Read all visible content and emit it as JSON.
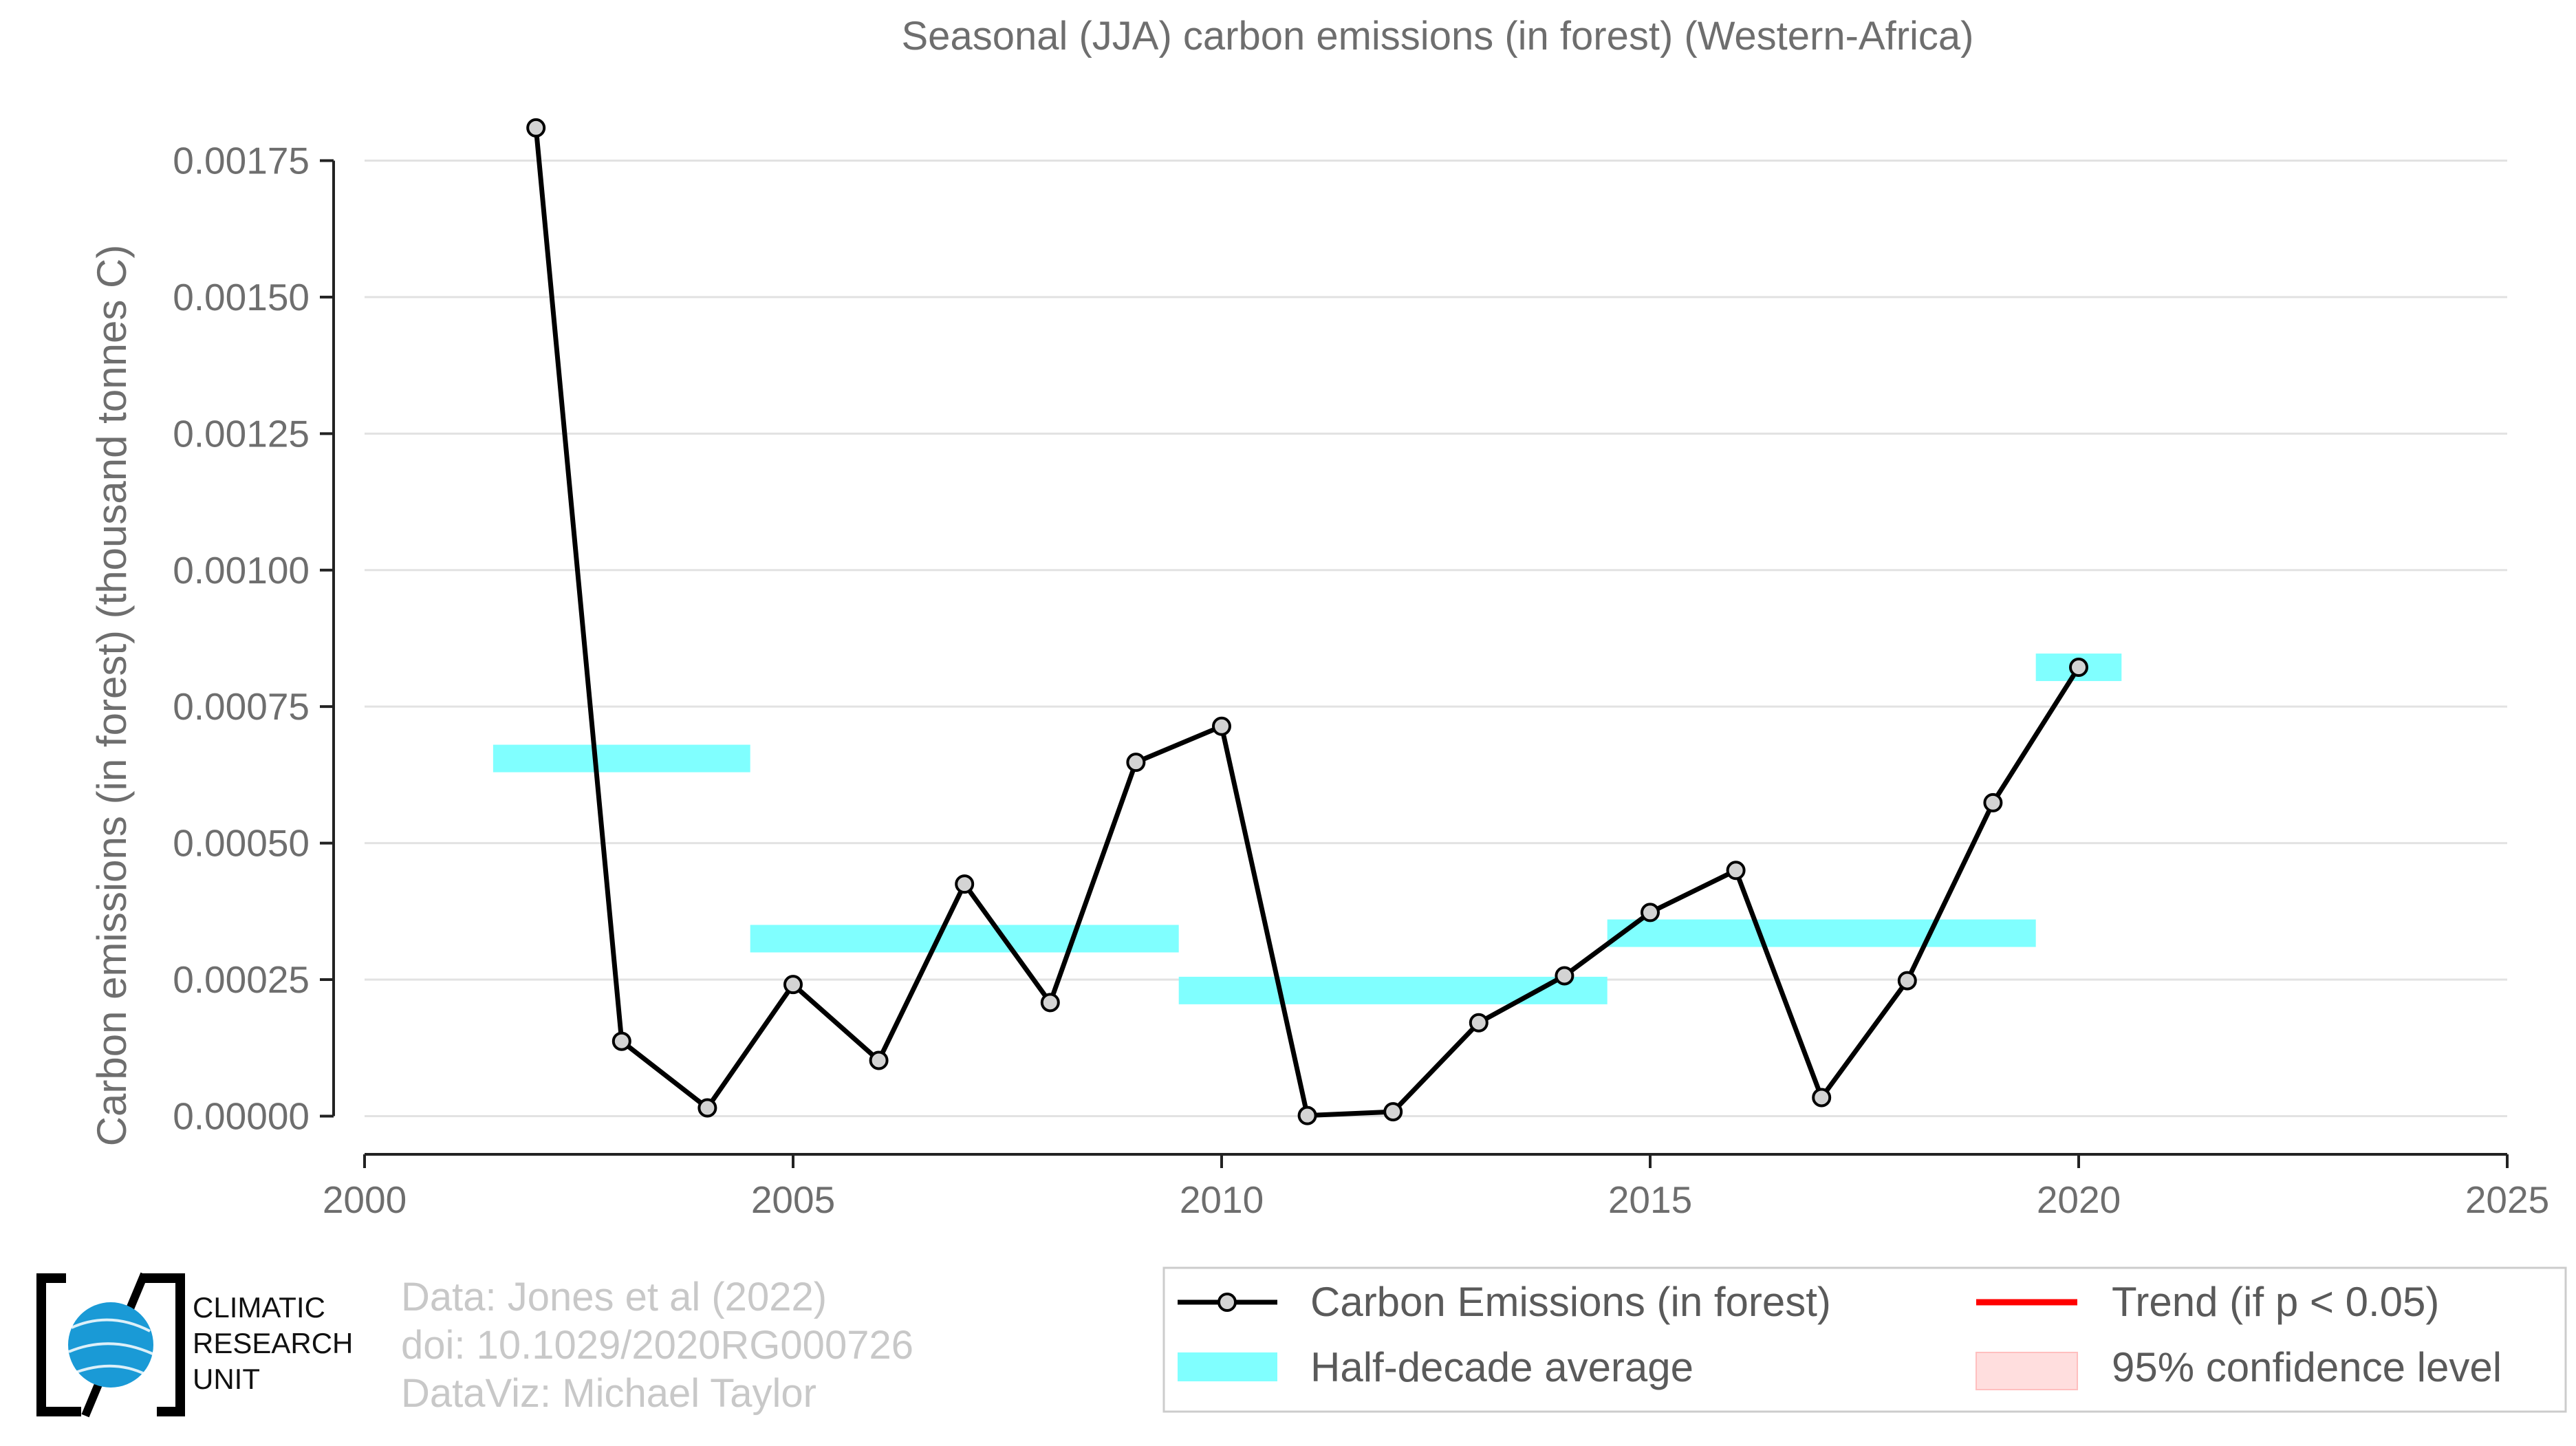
{
  "chart_data": {
    "type": "line",
    "title": "Seasonal (JJA) carbon emissions (in forest) (Western-Africa)",
    "xlabel": "",
    "ylabel": "Carbon emissions (in forest) (thousand tonnes C)",
    "xlim": [
      2000,
      2025
    ],
    "ylim": [
      -7e-05,
      0.00183
    ],
    "x_ticks": [
      2000,
      2005,
      2010,
      2015,
      2020,
      2025
    ],
    "x_tick_labels": [
      "2000",
      "2005",
      "2010",
      "2015",
      "2020",
      "2025"
    ],
    "y_ticks": [
      0,
      0.00025,
      0.0005,
      0.00075,
      0.001,
      0.00125,
      0.0015,
      0.00175
    ],
    "y_tick_labels": [
      "0.00000",
      "0.00025",
      "0.00050",
      "0.00075",
      "0.00100",
      "0.00125",
      "0.00150",
      "0.00175"
    ],
    "grid": "horizontal",
    "series": [
      {
        "name": "Carbon Emissions (in forest)",
        "color": "#000000",
        "marker_fill": "#d3d3d3",
        "x": [
          2002,
          2003,
          2004,
          2005,
          2006,
          2007,
          2008,
          2009,
          2010,
          2011,
          2012,
          2013,
          2014,
          2015,
          2016,
          2017,
          2018,
          2019,
          2020
        ],
        "y": [
          0.00181,
          0.000137,
          1.5e-05,
          0.000241,
          0.000102,
          0.000425,
          0.000208,
          0.000648,
          0.000714,
          1e-06,
          8e-06,
          0.000171,
          0.000257,
          0.000373,
          0.00045,
          3.4e-05,
          0.000248,
          0.000574,
          0.000822
        ]
      }
    ],
    "half_decade_average": {
      "name": "Half-decade average",
      "color": "#80ffff",
      "segments": [
        {
          "x_start": 2001.5,
          "x_end": 2004.5,
          "y": 0.000655
        },
        {
          "x_start": 2004.5,
          "x_end": 2009.5,
          "y": 0.000325
        },
        {
          "x_start": 2009.5,
          "x_end": 2014.5,
          "y": 0.00023
        },
        {
          "x_start": 2014.5,
          "x_end": 2019.5,
          "y": 0.000335
        },
        {
          "x_start": 2019.5,
          "x_end": 2020.5,
          "y": 0.000822
        }
      ]
    },
    "legend": {
      "position": "bottom-right",
      "entries": [
        {
          "label": "Carbon Emissions (in forest)",
          "kind": "line-marker",
          "color": "#000000"
        },
        {
          "label": "Trend (if p < 0.05)",
          "kind": "line",
          "color": "#ff0000"
        },
        {
          "label": "Half-decade average",
          "kind": "patch",
          "color": "#80ffff"
        },
        {
          "label": "95% confidence level",
          "kind": "patch",
          "color": "#ffd6d6"
        }
      ]
    }
  },
  "credits": {
    "line1": "Data: Jones et al (2022)",
    "line2": "doi: 10.1029/2020RG000726",
    "line3": "DataViz: Michael Taylor"
  },
  "logo": {
    "line1": "CLIMATIC",
    "line2": "RESEARCH",
    "line3": "UNIT",
    "globe_color": "#1a9ad6"
  }
}
